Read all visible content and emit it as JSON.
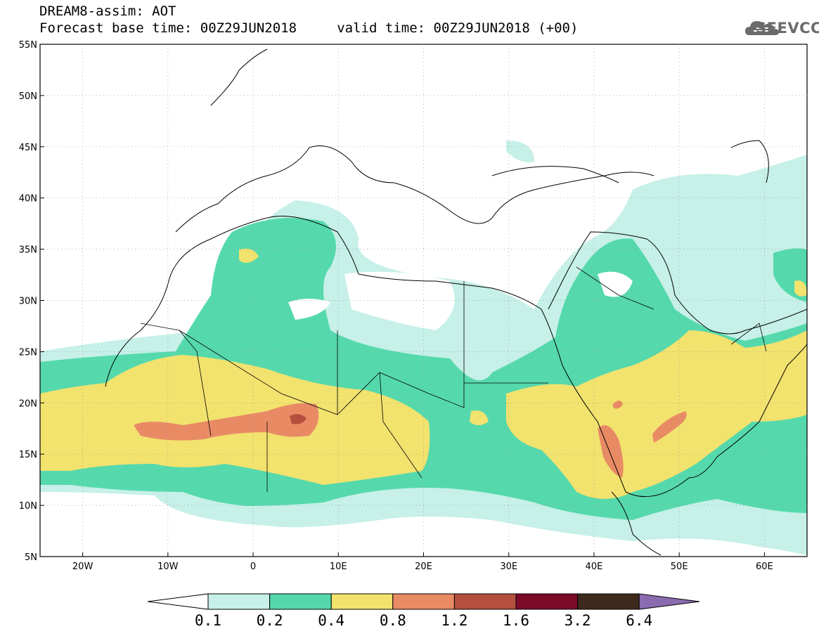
{
  "header": {
    "title_line1": "DREAM8-assim: AOT",
    "title_line2": "Forecast base time: 00Z29JUN2018     valid time: 00Z29JUN2018 (+00)",
    "logo_text": "SEEVCCC"
  },
  "map": {
    "lat_labels": [
      "55N",
      "50N",
      "45N",
      "40N",
      "35N",
      "30N",
      "25N",
      "20N",
      "15N",
      "10N",
      "5N"
    ],
    "lon_labels": [
      "20W",
      "10W",
      "0",
      "10E",
      "20E",
      "30E",
      "40E",
      "50E",
      "60E"
    ],
    "extent": {
      "lon_min": -25,
      "lon_max": 65,
      "lat_min": 5,
      "lat_max": 55
    }
  },
  "colorbar": {
    "labels": [
      "0.1",
      "0.2",
      "0.4",
      "0.8",
      "1.2",
      "1.6",
      "3.2",
      "6.4"
    ],
    "colors": [
      "#ffffff",
      "#c6f0e8",
      "#55d9ac",
      "#f2e26e",
      "#e88b65",
      "#b5503e",
      "#7e0a2a",
      "#3e2a1c",
      "#8b6bb0"
    ]
  },
  "palette": {
    "very_light": "#c6f0e8",
    "light": "#55d9ac",
    "yellow": "#f2e26e",
    "orange": "#e88b65",
    "red": "#b5503e",
    "dark_red": "#7e0a2a"
  }
}
